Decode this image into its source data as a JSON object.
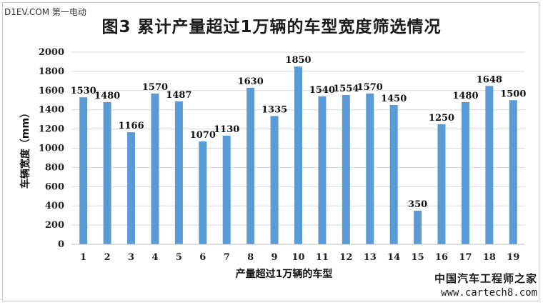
{
  "watermark_top": "D1EV.COM 第一电动",
  "watermark_bottom": {
    "name": "中国汽车工程师之家",
    "url": "www.cartech8.com"
  },
  "chart_data": {
    "type": "bar",
    "title": "图3 累计产量超过1万辆的车型宽度筛选情况",
    "xlabel": "产量超过1万辆的车型",
    "ylabel": "车辆宽度（mm）",
    "categories": [
      "1",
      "2",
      "3",
      "4",
      "5",
      "6",
      "7",
      "8",
      "9",
      "10",
      "11",
      "12",
      "13",
      "14",
      "15",
      "16",
      "17",
      "18",
      "19"
    ],
    "values": [
      1530,
      1480,
      1166,
      1570,
      1487,
      1070,
      1130,
      1630,
      1335,
      1850,
      1540,
      1554,
      1570,
      1450,
      350,
      1250,
      1480,
      1648,
      1500
    ],
    "ylim": [
      0,
      2000
    ],
    "yticks": [
      0,
      200,
      400,
      600,
      800,
      1000,
      1200,
      1400,
      1600,
      1800,
      2000
    ],
    "grid": true,
    "bar_color": "#5b9bd5",
    "grid_color": "#d9d9d9"
  }
}
